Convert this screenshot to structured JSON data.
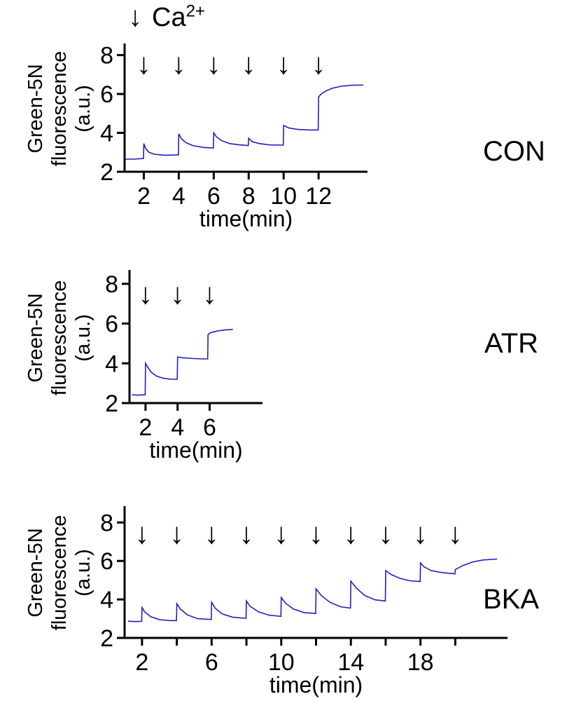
{
  "annotation": {
    "arrow": "↓",
    "element": "Ca",
    "superscript": "2+"
  },
  "chart_data": [
    {
      "type": "line",
      "title": "CON",
      "ylabel_lines": [
        "Green-5N",
        "fluorescence",
        "(a.u.)"
      ],
      "xlabel": "time(min)",
      "xlim": [
        0.9,
        14.8
      ],
      "ylim": [
        2,
        8.6
      ],
      "yticks": [
        2,
        4,
        6,
        8
      ],
      "xticks": [
        2,
        4,
        6,
        8,
        10,
        12
      ],
      "xtick_labels": [
        "2",
        "4",
        "6",
        "8",
        "10",
        "12"
      ],
      "arrow_times": [
        2,
        4,
        6,
        8,
        10,
        12
      ],
      "arrow_glyph": "↓",
      "line_color": "#2020c0",
      "axis_color": "#000000",
      "points": [
        [
          0.95,
          2.65
        ],
        [
          1.4,
          2.65
        ],
        [
          1.98,
          2.68
        ],
        [
          2.0,
          3.45
        ],
        [
          2.1,
          3.2
        ],
        [
          2.3,
          3.0
        ],
        [
          2.6,
          2.9
        ],
        [
          3.2,
          2.85
        ],
        [
          3.98,
          2.87
        ],
        [
          4.0,
          3.95
        ],
        [
          4.15,
          3.7
        ],
        [
          4.4,
          3.5
        ],
        [
          4.8,
          3.35
        ],
        [
          5.4,
          3.25
        ],
        [
          5.98,
          3.22
        ],
        [
          6.0,
          4.0
        ],
        [
          6.15,
          3.8
        ],
        [
          6.45,
          3.6
        ],
        [
          6.9,
          3.45
        ],
        [
          7.5,
          3.38
        ],
        [
          7.98,
          3.35
        ],
        [
          8.0,
          3.72
        ],
        [
          8.2,
          3.55
        ],
        [
          8.6,
          3.45
        ],
        [
          9.2,
          3.38
        ],
        [
          9.98,
          3.37
        ],
        [
          10.0,
          4.38
        ],
        [
          10.3,
          4.25
        ],
        [
          10.8,
          4.18
        ],
        [
          11.5,
          4.15
        ],
        [
          11.98,
          4.15
        ],
        [
          12.0,
          5.85
        ],
        [
          12.15,
          6.0
        ],
        [
          12.4,
          6.15
        ],
        [
          12.8,
          6.3
        ],
        [
          13.3,
          6.4
        ],
        [
          13.9,
          6.45
        ],
        [
          14.55,
          6.46
        ]
      ]
    },
    {
      "type": "line",
      "title": "ATR",
      "ylabel_lines": [
        "Green-5N",
        "fluorescence",
        "(a.u.)"
      ],
      "xlabel": "time(min)",
      "xlim": [
        1,
        9.3
      ],
      "ylim": [
        2,
        8.7
      ],
      "yticks": [
        2,
        4,
        6,
        8
      ],
      "xticks": [
        2,
        4,
        6
      ],
      "xtick_labels": [
        "2",
        "4",
        "6"
      ],
      "arrow_times": [
        2,
        4,
        6
      ],
      "arrow_glyph": "↓",
      "line_color": "#2020c0",
      "axis_color": "#000000",
      "points": [
        [
          1.15,
          2.42
        ],
        [
          1.5,
          2.4
        ],
        [
          1.98,
          2.42
        ],
        [
          2.0,
          4.0
        ],
        [
          2.1,
          3.85
        ],
        [
          2.35,
          3.55
        ],
        [
          2.7,
          3.35
        ],
        [
          3.1,
          3.25
        ],
        [
          3.6,
          3.2
        ],
        [
          3.98,
          3.2
        ],
        [
          4.0,
          4.32
        ],
        [
          4.3,
          4.28
        ],
        [
          5.0,
          4.24
        ],
        [
          5.6,
          4.22
        ],
        [
          5.88,
          4.22
        ],
        [
          5.9,
          5.45
        ],
        [
          6.1,
          5.55
        ],
        [
          6.5,
          5.63
        ],
        [
          7.0,
          5.68
        ],
        [
          7.45,
          5.7
        ]
      ]
    },
    {
      "type": "line",
      "title": "BKA",
      "ylabel_lines": [
        "Green-5N",
        "fluorescence",
        "(a.u.)"
      ],
      "xlabel": "time(min)",
      "xlim": [
        1,
        23
      ],
      "ylim": [
        2,
        8.85
      ],
      "yticks": [
        2,
        4,
        6,
        8
      ],
      "xticks": [
        2,
        4,
        6,
        8,
        10,
        12,
        14,
        16,
        18,
        20
      ],
      "xtick_labels": [
        "2",
        "",
        "6",
        "",
        "10",
        "",
        "14",
        "",
        "18",
        ""
      ],
      "arrow_times": [
        2,
        4,
        6,
        8,
        10,
        12,
        14,
        16,
        18,
        20
      ],
      "arrow_glyph": "↓",
      "line_color": "#2020c0",
      "axis_color": "#000000",
      "points": [
        [
          1.2,
          2.87
        ],
        [
          1.6,
          2.85
        ],
        [
          1.98,
          2.86
        ],
        [
          2.0,
          3.58
        ],
        [
          2.15,
          3.35
        ],
        [
          2.5,
          3.1
        ],
        [
          3.0,
          2.95
        ],
        [
          3.6,
          2.9
        ],
        [
          3.98,
          2.9
        ],
        [
          4.0,
          3.78
        ],
        [
          4.2,
          3.5
        ],
        [
          4.6,
          3.2
        ],
        [
          5.2,
          3.0
        ],
        [
          5.98,
          2.96
        ],
        [
          6.0,
          3.85
        ],
        [
          6.2,
          3.55
        ],
        [
          6.6,
          3.25
        ],
        [
          7.2,
          3.08
        ],
        [
          7.98,
          3.02
        ],
        [
          8.0,
          3.92
        ],
        [
          8.2,
          3.65
        ],
        [
          8.7,
          3.35
        ],
        [
          9.3,
          3.18
        ],
        [
          9.98,
          3.12
        ],
        [
          10.0,
          4.1
        ],
        [
          10.25,
          3.8
        ],
        [
          10.7,
          3.5
        ],
        [
          11.3,
          3.32
        ],
        [
          11.98,
          3.27
        ],
        [
          12.0,
          4.55
        ],
        [
          12.3,
          4.2
        ],
        [
          12.8,
          3.85
        ],
        [
          13.4,
          3.62
        ],
        [
          13.98,
          3.55
        ],
        [
          14.0,
          4.95
        ],
        [
          14.3,
          4.6
        ],
        [
          14.8,
          4.2
        ],
        [
          15.4,
          3.98
        ],
        [
          15.98,
          3.92
        ],
        [
          16.0,
          5.5
        ],
        [
          16.3,
          5.3
        ],
        [
          16.8,
          5.1
        ],
        [
          17.4,
          4.97
        ],
        [
          17.98,
          4.93
        ],
        [
          18.0,
          5.9
        ],
        [
          18.2,
          5.7
        ],
        [
          18.6,
          5.5
        ],
        [
          19.2,
          5.4
        ],
        [
          19.98,
          5.33
        ],
        [
          20.0,
          5.55
        ],
        [
          20.4,
          5.75
        ],
        [
          21.0,
          5.95
        ],
        [
          21.6,
          6.05
        ],
        [
          22.4,
          6.1
        ]
      ]
    }
  ]
}
